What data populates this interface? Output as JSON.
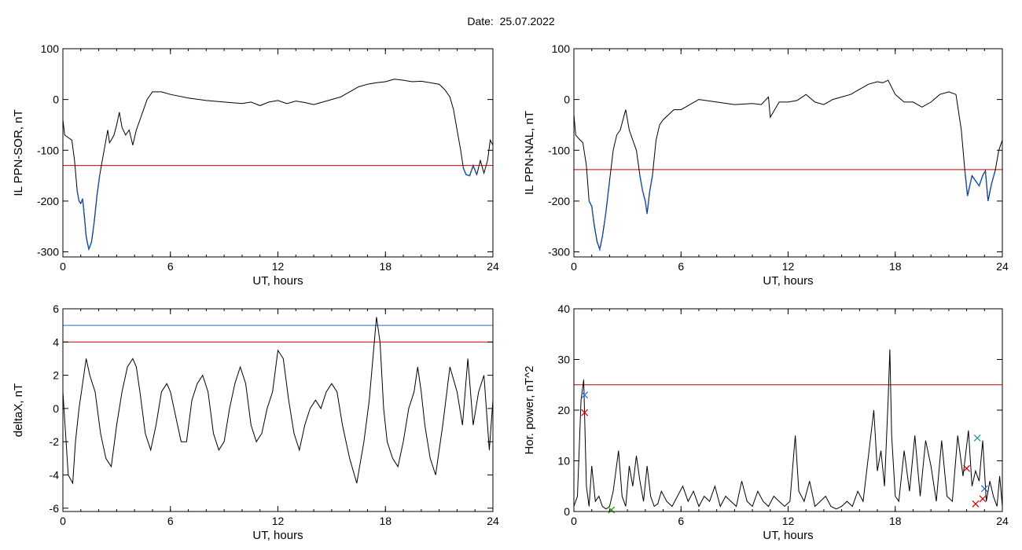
{
  "page": {
    "title": "Date:  25.07.2022"
  },
  "chart_data": [
    {
      "id": "ppn-sor",
      "type": "line",
      "xlabel": "UT, hours",
      "ylabel": "IL PPN-SOR, nT",
      "xlim": [
        0,
        24
      ],
      "ylim": [
        -310,
        100
      ],
      "xticks": [
        0,
        6,
        12,
        18,
        24
      ],
      "yticks": [
        -300,
        -200,
        -100,
        0,
        100
      ],
      "grid": false,
      "colors": {
        "line": "#000000",
        "threshold": "#cc0000",
        "highlight": "#1f5fbf"
      },
      "thresholds": [
        {
          "y": -130,
          "color": "#cc0000"
        }
      ],
      "series": [
        {
          "x": [
            0,
            0.1,
            0.3,
            0.5,
            0.65,
            0.8,
            0.9,
            1.0,
            1.1,
            1.2,
            1.3,
            1.45,
            1.6,
            1.75,
            1.9,
            2.05,
            2.2,
            2.35,
            2.5,
            2.6,
            2.7,
            2.85,
            3.0,
            3.15,
            3.3,
            3.5,
            3.7,
            3.9,
            4.1,
            4.3,
            4.5,
            4.7,
            5.0,
            5.5,
            6.0,
            7.0,
            8.0,
            9.0,
            10.0,
            10.5,
            11.0,
            11.5,
            12.0,
            12.5,
            13.0,
            13.5,
            14.0,
            14.5,
            15.0,
            15.5,
            16.0,
            16.5,
            17.0,
            17.5,
            18.0,
            18.5,
            19.0,
            19.5,
            20.0,
            20.5,
            21.0,
            21.3,
            21.6,
            21.8,
            22.0,
            22.2,
            22.35,
            22.5,
            22.7,
            22.9,
            23.1,
            23.3,
            23.5,
            23.7,
            23.85,
            24.0
          ],
          "y": [
            -40,
            -70,
            -75,
            -80,
            -120,
            -180,
            -200,
            -205,
            -195,
            -230,
            -270,
            -295,
            -280,
            -240,
            -190,
            -150,
            -120,
            -90,
            -60,
            -85,
            -80,
            -70,
            -50,
            -25,
            -55,
            -70,
            -60,
            -90,
            -60,
            -40,
            -20,
            0,
            15,
            15,
            10,
            3,
            -2,
            -5,
            -8,
            -5,
            -12,
            -5,
            -2,
            -8,
            -3,
            -6,
            -10,
            -5,
            0,
            5,
            15,
            25,
            30,
            33,
            35,
            40,
            38,
            35,
            36,
            33,
            30,
            20,
            5,
            -20,
            -60,
            -100,
            -135,
            -148,
            -150,
            -130,
            -148,
            -120,
            -145,
            -120,
            -80,
            -90
          ]
        }
      ]
    },
    {
      "id": "ppn-nal",
      "type": "line",
      "xlabel": "UT, hours",
      "ylabel": "IL PPN-NAL, nT",
      "xlim": [
        0,
        24
      ],
      "ylim": [
        -310,
        100
      ],
      "xticks": [
        0,
        6,
        12,
        18,
        24
      ],
      "yticks": [
        -300,
        -200,
        -100,
        0,
        100
      ],
      "grid": false,
      "colors": {
        "line": "#000000",
        "threshold": "#cc0000",
        "highlight": "#1f5fbf"
      },
      "thresholds": [
        {
          "y": -138,
          "color": "#cc0000"
        }
      ],
      "series": [
        {
          "x": [
            0,
            0.1,
            0.3,
            0.5,
            0.7,
            0.85,
            1.0,
            1.15,
            1.3,
            1.45,
            1.6,
            1.8,
            2.0,
            2.2,
            2.4,
            2.6,
            2.75,
            2.9,
            3.1,
            3.3,
            3.5,
            3.7,
            3.85,
            4.0,
            4.1,
            4.25,
            4.4,
            4.6,
            4.8,
            5.0,
            5.3,
            5.6,
            6.0,
            6.5,
            7.0,
            8.0,
            9.0,
            10.0,
            10.5,
            10.9,
            11.0,
            11.5,
            12.0,
            12.5,
            13.0,
            13.5,
            14.0,
            14.5,
            15.0,
            15.5,
            16.0,
            16.5,
            17.0,
            17.3,
            17.6,
            18.0,
            18.5,
            19.0,
            19.5,
            20.0,
            20.5,
            21.0,
            21.4,
            21.7,
            21.9,
            22.05,
            22.3,
            22.5,
            22.7,
            22.9,
            23.05,
            23.2,
            23.4,
            23.6,
            23.8,
            24.0
          ],
          "y": [
            -30,
            -70,
            -78,
            -85,
            -130,
            -200,
            -210,
            -250,
            -280,
            -295,
            -270,
            -220,
            -160,
            -100,
            -70,
            -60,
            -40,
            -20,
            -60,
            -80,
            -100,
            -150,
            -180,
            -200,
            -225,
            -180,
            -150,
            -80,
            -50,
            -40,
            -30,
            -20,
            -20,
            -10,
            0,
            -5,
            -10,
            -8,
            -10,
            5,
            -35,
            -5,
            -5,
            -2,
            10,
            -5,
            -10,
            0,
            5,
            10,
            20,
            30,
            35,
            33,
            38,
            10,
            -5,
            -5,
            -15,
            -5,
            10,
            15,
            10,
            -60,
            -140,
            -190,
            -150,
            -160,
            -170,
            -150,
            -140,
            -200,
            -165,
            -140,
            -100,
            -80
          ]
        }
      ]
    },
    {
      "id": "delta-x",
      "type": "line",
      "xlabel": "UT, hours",
      "ylabel": "deltaX, nT",
      "xlim": [
        0,
        24
      ],
      "ylim": [
        -6.2,
        6
      ],
      "xticks": [
        0,
        6,
        12,
        18,
        24
      ],
      "yticks": [
        -6,
        -4,
        -2,
        0,
        2,
        4,
        6
      ],
      "grid": false,
      "colors": {
        "line": "#000000"
      },
      "thresholds": [
        {
          "y": 5,
          "color": "#1f6fd0"
        },
        {
          "y": 4,
          "color": "#cc0000"
        }
      ],
      "series": [
        {
          "x": [
            0,
            0.3,
            0.55,
            0.7,
            0.9,
            1.1,
            1.3,
            1.5,
            1.8,
            2.1,
            2.4,
            2.7,
            3.0,
            3.3,
            3.6,
            3.9,
            4.1,
            4.3,
            4.6,
            4.9,
            5.2,
            5.5,
            5.8,
            6.0,
            6.3,
            6.6,
            6.9,
            7.2,
            7.5,
            7.8,
            8.1,
            8.4,
            8.7,
            9.0,
            9.3,
            9.6,
            9.9,
            10.2,
            10.5,
            10.8,
            11.1,
            11.4,
            11.7,
            12.0,
            12.3,
            12.6,
            12.9,
            13.2,
            13.5,
            13.8,
            14.1,
            14.4,
            14.7,
            15.0,
            15.3,
            15.6,
            16.0,
            16.4,
            16.8,
            17.1,
            17.3,
            17.5,
            17.7,
            17.9,
            18.1,
            18.4,
            18.7,
            19.0,
            19.3,
            19.6,
            19.8,
            20.0,
            20.2,
            20.5,
            20.8,
            21.2,
            21.6,
            22.0,
            22.3,
            22.6,
            22.9,
            23.2,
            23.5,
            23.8,
            24.0
          ],
          "y": [
            1.0,
            -4.0,
            -4.5,
            -2.0,
            0.0,
            1.5,
            3.0,
            2.0,
            1.0,
            -1.5,
            -3.0,
            -3.5,
            -1.0,
            1.0,
            2.5,
            3.0,
            2.5,
            1.0,
            -1.5,
            -2.5,
            -1.0,
            1.0,
            1.5,
            1.0,
            -0.5,
            -2.0,
            -2.0,
            0.5,
            1.5,
            2.0,
            1.0,
            -1.5,
            -2.5,
            -2.0,
            0.0,
            1.5,
            2.5,
            1.5,
            -1.0,
            -2.0,
            -1.5,
            0.0,
            1.0,
            3.5,
            3.0,
            0.5,
            -1.5,
            -2.5,
            -1.0,
            0.0,
            0.5,
            0.0,
            1.0,
            1.5,
            1.0,
            -1.0,
            -3.0,
            -4.5,
            -2.0,
            0.5,
            3.0,
            5.5,
            4.0,
            0.0,
            -2.0,
            -3.0,
            -3.5,
            -2.0,
            0.0,
            1.0,
            2.5,
            1.0,
            -1.0,
            -3.0,
            -4.0,
            -1.0,
            2.5,
            1.0,
            -1.0,
            3.0,
            -1.0,
            1.0,
            2.0,
            -2.5,
            0.5
          ]
        }
      ]
    },
    {
      "id": "hor-power",
      "type": "line",
      "xlabel": "UT, hours",
      "ylabel": "Hor. power, nT^2",
      "xlim": [
        0,
        24
      ],
      "ylim": [
        0,
        40
      ],
      "xticks": [
        0,
        6,
        12,
        18,
        24
      ],
      "yticks": [
        0,
        10,
        20,
        30,
        40
      ],
      "grid": false,
      "colors": {
        "line": "#000000"
      },
      "thresholds": [
        {
          "y": 25,
          "color": "#cc0000"
        }
      ],
      "markers": [
        {
          "x": 0.6,
          "y": 23,
          "color": "#1f6fd0"
        },
        {
          "x": 0.6,
          "y": 19.5,
          "color": "#cc0000"
        },
        {
          "x": 22.0,
          "y": 8.5,
          "color": "#cc0000"
        },
        {
          "x": 22.6,
          "y": 14.5,
          "color": "#1a9a8a"
        },
        {
          "x": 23.0,
          "y": 4.5,
          "color": "#1f6fd0"
        },
        {
          "x": 22.5,
          "y": 1.5,
          "color": "#cc0000"
        },
        {
          "x": 22.9,
          "y": 2.5,
          "color": "#cc0000"
        },
        {
          "x": 2.1,
          "y": 0.3,
          "color": "#1a9a00"
        }
      ],
      "series": [
        {
          "x": [
            0,
            0.2,
            0.4,
            0.55,
            0.7,
            0.85,
            1.0,
            1.2,
            1.4,
            1.6,
            1.8,
            2.0,
            2.2,
            2.5,
            2.7,
            2.9,
            3.1,
            3.3,
            3.5,
            3.7,
            3.9,
            4.1,
            4.3,
            4.5,
            4.7,
            4.9,
            5.2,
            5.5,
            5.8,
            6.1,
            6.4,
            6.7,
            7.0,
            7.3,
            7.6,
            7.9,
            8.2,
            8.5,
            8.8,
            9.1,
            9.4,
            9.7,
            10.0,
            10.3,
            10.6,
            10.9,
            11.2,
            11.5,
            11.8,
            12.1,
            12.4,
            12.6,
            12.9,
            13.2,
            13.5,
            13.8,
            14.1,
            14.4,
            14.7,
            15.0,
            15.3,
            15.6,
            15.9,
            16.2,
            16.5,
            16.8,
            17.0,
            17.2,
            17.4,
            17.6,
            17.7,
            17.8,
            18.0,
            18.2,
            18.5,
            18.8,
            19.1,
            19.4,
            19.7,
            20.0,
            20.3,
            20.6,
            20.9,
            21.2,
            21.5,
            21.8,
            22.1,
            22.3,
            22.5,
            22.7,
            22.9,
            23.1,
            23.3,
            23.5,
            23.7,
            23.85,
            24.0
          ],
          "y": [
            1.0,
            3.0,
            22.0,
            26.0,
            5.0,
            1.0,
            9.0,
            2.0,
            3.0,
            1.0,
            0.5,
            1.0,
            4.0,
            12.0,
            3.0,
            1.0,
            9.0,
            5.0,
            11.0,
            6.0,
            2.0,
            9.0,
            3.0,
            1.0,
            1.5,
            4.0,
            2.0,
            1.0,
            3.0,
            5.0,
            2.0,
            4.0,
            1.0,
            3.0,
            2.0,
            5.0,
            1.0,
            3.0,
            2.0,
            1.0,
            6.0,
            2.0,
            1.0,
            4.0,
            2.0,
            1.0,
            3.0,
            2.0,
            1.0,
            2.0,
            15.0,
            4.0,
            2.0,
            6.0,
            1.0,
            2.0,
            3.0,
            1.0,
            0.5,
            1.0,
            2.0,
            1.0,
            4.0,
            2.0,
            11.0,
            20.0,
            8.0,
            12.0,
            5.0,
            22.0,
            32.0,
            15.0,
            3.0,
            2.0,
            12.0,
            4.0,
            15.0,
            3.0,
            14.0,
            9.0,
            2.0,
            14.0,
            3.0,
            2.0,
            15.0,
            7.0,
            16.0,
            5.0,
            8.0,
            6.0,
            14.0,
            2.0,
            6.0,
            3.0,
            1.0,
            7.0,
            1.0
          ]
        }
      ]
    }
  ]
}
